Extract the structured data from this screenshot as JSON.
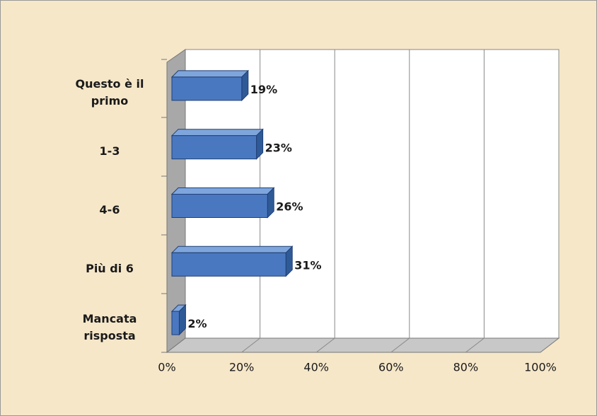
{
  "chart_data": {
    "type": "bar",
    "orientation": "horizontal",
    "categories": [
      "Questo è il primo",
      "1-3",
      "4-6",
      "Più di 6",
      "Mancata risposta"
    ],
    "values": [
      19,
      23,
      26,
      31,
      2
    ],
    "value_labels": [
      "19%",
      "23%",
      "26%",
      "31%",
      "2%"
    ],
    "color": "#4a78c0",
    "xlim": [
      0,
      100
    ],
    "xticks": [
      {
        "value": 0,
        "label": "0%"
      },
      {
        "value": 20,
        "label": "20%"
      },
      {
        "value": 40,
        "label": "40%"
      },
      {
        "value": 60,
        "label": "60%"
      },
      {
        "value": 80,
        "label": "80%"
      },
      {
        "value": 100,
        "label": "100%"
      }
    ],
    "grid": true
  }
}
